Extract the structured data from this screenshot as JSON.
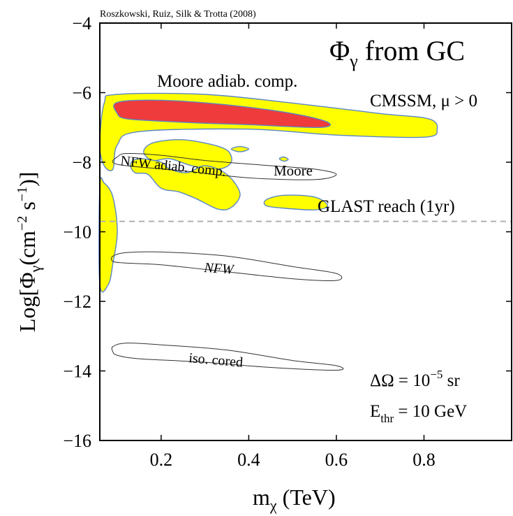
{
  "chart_data": {
    "type": "contour",
    "credit": "Roszkowski, Ruiz, Silk & Trotta (2008)",
    "title": {
      "symbol": "Φ",
      "sub": "γ",
      "rest": " from GC"
    },
    "xlabel": {
      "main": "m",
      "sub": "χ",
      "rest": " (TeV)"
    },
    "ylabel": {
      "pre": "Log[Φ",
      "sub": "γ",
      "mid": "(cm",
      "sup1": "−2",
      "gap": " s",
      "sup2": "−1",
      "post": ")]"
    },
    "xlim": [
      0.06,
      1.0
    ],
    "ylim": [
      -16,
      -4
    ],
    "xticks": [
      0.2,
      0.4,
      0.6,
      0.8
    ],
    "xtick_labels": [
      "0.2",
      "0.4",
      "0.6",
      "0.8"
    ],
    "yticks": [
      -4,
      -6,
      -8,
      -10,
      -12,
      -14,
      -16
    ],
    "ytick_labels": [
      "−4",
      "−6",
      "−8",
      "−10",
      "−12",
      "−14",
      "−16"
    ],
    "grid": false,
    "colors": {
      "inner_region": "#ef3b3b",
      "outer_region": "#ffff00",
      "region_edge": "#5a86c8",
      "reach_line": "#b0b0b0"
    },
    "annotations": {
      "model": "CMSSM, μ > 0",
      "glast": "GLAST reach (1yr)",
      "moore_adiab": "Moore adiab. comp.",
      "nfw_adiab": "NFW adiab. comp.",
      "moore": "Moore",
      "nfw": "NFW",
      "iso": "iso. cored",
      "domega": {
        "pre": "ΔΩ  = 10",
        "sup": "−5",
        "post": " sr"
      },
      "ethr": {
        "pre": "E",
        "sub": "thr",
        "post": " = 10 GeV"
      }
    },
    "reach_line_y": -9.7,
    "regions": [
      {
        "name": "Moore adiab. comp. (red)",
        "fill": "inner",
        "points": [
          [
            0.1,
            -6.28
          ],
          [
            0.2,
            -6.22
          ],
          [
            0.35,
            -6.35
          ],
          [
            0.5,
            -6.6
          ],
          [
            0.58,
            -6.85
          ],
          [
            0.56,
            -7.0
          ],
          [
            0.4,
            -6.92
          ],
          [
            0.3,
            -6.88
          ],
          [
            0.2,
            -6.82
          ],
          [
            0.12,
            -6.75
          ],
          [
            0.1,
            -6.6
          ]
        ]
      },
      {
        "name": "Moore adiab. comp. (yellow)",
        "fill": "outer",
        "points": [
          [
            0.07,
            -6.3
          ],
          [
            0.1,
            -6.05
          ],
          [
            0.3,
            -6.05
          ],
          [
            0.5,
            -6.3
          ],
          [
            0.7,
            -6.6
          ],
          [
            0.81,
            -6.75
          ],
          [
            0.83,
            -7.05
          ],
          [
            0.8,
            -7.28
          ],
          [
            0.6,
            -7.22
          ],
          [
            0.4,
            -7.05
          ],
          [
            0.15,
            -7.12
          ],
          [
            0.1,
            -7.5
          ],
          [
            0.09,
            -8.2
          ],
          [
            0.07,
            -8.1
          ],
          [
            0.06,
            -7.5
          ]
        ]
      },
      {
        "name": "Moore adiab. comp. (yellow)",
        "fill": "outer",
        "points": [
          [
            0.16,
            -7.7
          ],
          [
            0.18,
            -7.45
          ],
          [
            0.24,
            -7.35
          ],
          [
            0.3,
            -7.45
          ],
          [
            0.35,
            -7.65
          ],
          [
            0.36,
            -8.0
          ],
          [
            0.33,
            -8.2
          ],
          [
            0.27,
            -8.1
          ],
          [
            0.22,
            -7.9
          ],
          [
            0.18,
            -7.95
          ]
        ]
      },
      {
        "name": "Moore adiab. comp. (yellow)",
        "fill": "outer",
        "points": [
          [
            0.13,
            -8.05
          ],
          [
            0.15,
            -7.9
          ],
          [
            0.2,
            -8.0
          ],
          [
            0.22,
            -8.2
          ],
          [
            0.26,
            -8.3
          ],
          [
            0.3,
            -8.1
          ],
          [
            0.35,
            -8.35
          ],
          [
            0.38,
            -8.9
          ],
          [
            0.36,
            -9.3
          ],
          [
            0.33,
            -9.35
          ],
          [
            0.28,
            -9.05
          ],
          [
            0.24,
            -8.85
          ],
          [
            0.2,
            -8.75
          ],
          [
            0.17,
            -8.35
          ],
          [
            0.14,
            -8.3
          ]
        ]
      },
      {
        "name": "Moore adiab. comp. (yellow)",
        "fill": "outer",
        "points": [
          [
            0.44,
            -9.08
          ],
          [
            0.48,
            -8.95
          ],
          [
            0.55,
            -9.0
          ],
          [
            0.58,
            -9.25
          ],
          [
            0.55,
            -9.37
          ],
          [
            0.48,
            -9.32
          ],
          [
            0.44,
            -9.25
          ]
        ]
      },
      {
        "name": "Moore adiab. comp. (yellow)",
        "fill": "outer",
        "points": [
          [
            0.36,
            -7.62
          ],
          [
            0.38,
            -7.55
          ],
          [
            0.4,
            -7.62
          ],
          [
            0.38,
            -7.7
          ]
        ]
      },
      {
        "name": "Moore adiab. comp. (yellow)",
        "fill": "outer",
        "points": [
          [
            0.47,
            -7.9
          ],
          [
            0.48,
            -7.85
          ],
          [
            0.49,
            -7.92
          ],
          [
            0.48,
            -7.97
          ]
        ]
      },
      {
        "name": "Moore adiab. comp. (yellow)",
        "fill": "outer",
        "points": [
          [
            0.06,
            -8.7
          ],
          [
            0.07,
            -8.6
          ],
          [
            0.09,
            -9.0
          ],
          [
            0.1,
            -10.0
          ],
          [
            0.09,
            -10.9
          ],
          [
            0.08,
            -11.5
          ],
          [
            0.06,
            -11.5
          ]
        ]
      }
    ],
    "contours": [
      {
        "name": "NFW adiab. comp. / Moore",
        "points": [
          [
            0.1,
            -7.85
          ],
          [
            0.12,
            -7.75
          ],
          [
            0.2,
            -7.8
          ],
          [
            0.3,
            -7.95
          ],
          [
            0.45,
            -8.1
          ],
          [
            0.55,
            -8.2
          ],
          [
            0.6,
            -8.35
          ],
          [
            0.55,
            -8.5
          ],
          [
            0.4,
            -8.45
          ],
          [
            0.25,
            -8.25
          ],
          [
            0.12,
            -8.1
          ],
          [
            0.09,
            -8.0
          ]
        ]
      },
      {
        "name": "NFW",
        "points": [
          [
            0.09,
            -10.7
          ],
          [
            0.12,
            -10.6
          ],
          [
            0.2,
            -10.58
          ],
          [
            0.35,
            -10.7
          ],
          [
            0.5,
            -11.0
          ],
          [
            0.6,
            -11.2
          ],
          [
            0.6,
            -11.4
          ],
          [
            0.5,
            -11.35
          ],
          [
            0.35,
            -11.15
          ],
          [
            0.2,
            -10.95
          ],
          [
            0.12,
            -10.9
          ],
          [
            0.09,
            -10.85
          ]
        ]
      },
      {
        "name": "iso. cored",
        "points": [
          [
            0.09,
            -13.3
          ],
          [
            0.12,
            -13.2
          ],
          [
            0.2,
            -13.25
          ],
          [
            0.35,
            -13.4
          ],
          [
            0.5,
            -13.7
          ],
          [
            0.6,
            -13.85
          ],
          [
            0.6,
            -13.98
          ],
          [
            0.45,
            -13.9
          ],
          [
            0.3,
            -13.75
          ],
          [
            0.15,
            -13.65
          ],
          [
            0.1,
            -13.55
          ],
          [
            0.09,
            -13.45
          ]
        ]
      }
    ]
  }
}
